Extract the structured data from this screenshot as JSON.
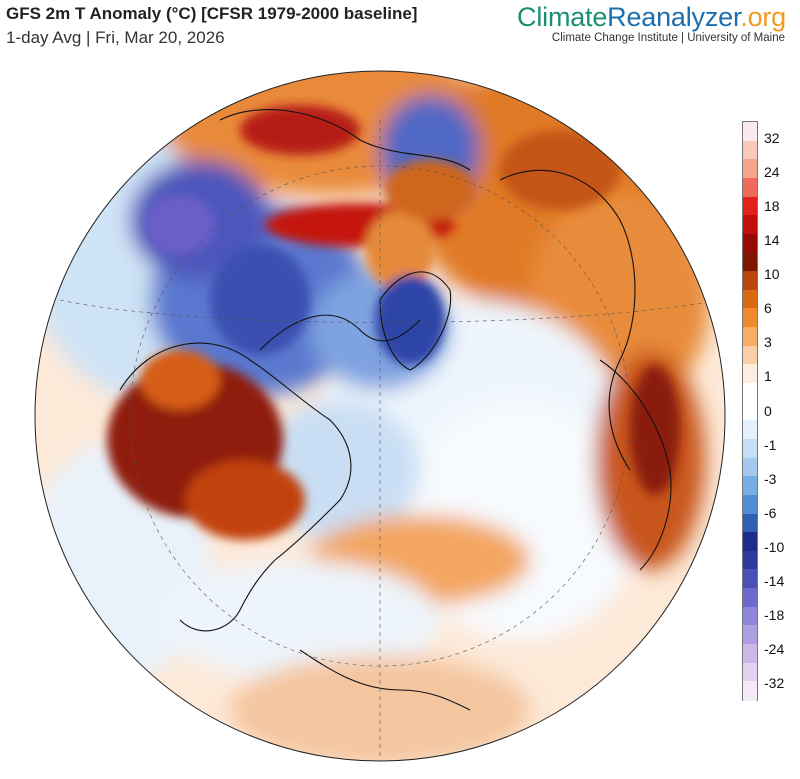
{
  "header": {
    "title": "GFS 2m T Anomaly (°C) [CFSR 1979-2000 baseline]",
    "subtitle": "1-day Avg | Fri, Mar 20, 2026"
  },
  "brand": {
    "part1": "Climate",
    "part2": "Reanalyzer",
    "part3": ".org",
    "institution": "Climate Change Institute | University of Maine",
    "colors": {
      "climate": "#1b8f74",
      "reanalyzer": "#1c6fae",
      "org": "#f29a20"
    }
  },
  "map": {
    "projection": "orthographic (Northern Hemisphere)",
    "variable": "2m temperature anomaly"
  },
  "legend": {
    "labels": [
      "32",
      "24",
      "18",
      "14",
      "10",
      "6",
      "3",
      "1",
      "0",
      "-1",
      "-3",
      "-6",
      "-10",
      "-14",
      "-18",
      "-24",
      "-32"
    ],
    "colors": [
      "#fbe9ec",
      "#f8c8b8",
      "#f5a38c",
      "#ef6a5a",
      "#e4201c",
      "#c0100c",
      "#9a0a06",
      "#7f1600",
      "#b8460a",
      "#d86a10",
      "#f08a2c",
      "#f7ad66",
      "#fbd0a6",
      "#fdece0",
      "#ffffff",
      "#ffffff",
      "#e4f0fb",
      "#c6def5",
      "#a3c9ee",
      "#78aee3",
      "#4f8cd2",
      "#2e5fb5",
      "#1b2c8c",
      "#2e3a9e",
      "#4b4fb8",
      "#6c6acc",
      "#8e86d8",
      "#ae9fe0",
      "#c9b8e8",
      "#e2d2ef",
      "#f4e9f6"
    ]
  }
}
